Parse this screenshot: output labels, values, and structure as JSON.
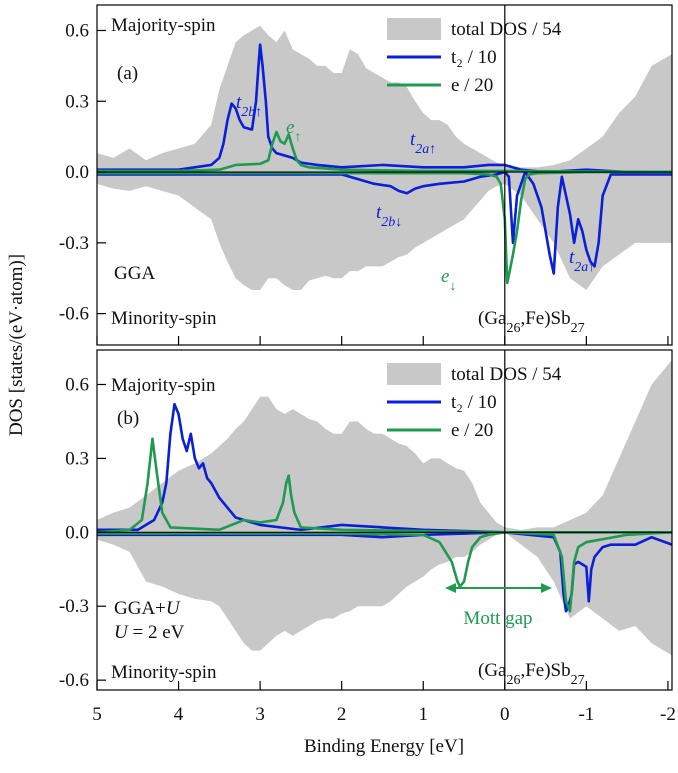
{
  "figure": {
    "ylabel": "DOS [states/(eV·atom)]",
    "xlabel": "Binding Energy [eV]"
  },
  "chart_data": [
    {
      "type": "dos",
      "panel_label": "(a)",
      "spin_labels": [
        "Majority-spin",
        "Minority-spin"
      ],
      "method": [
        [
          {
            "text": "GGA"
          }
        ]
      ],
      "formula": [
        {
          "text": "(Ga"
        },
        {
          "text": "26",
          "style": "sub"
        },
        {
          "text": ",Fe)Sb"
        },
        {
          "text": "27",
          "style": "sub"
        }
      ],
      "peak_labels": [
        {
          "segments": [
            {
              "text": "t"
            },
            {
              "text": "2b↑",
              "style": "sub"
            }
          ],
          "color": "#0a1fd6"
        },
        {
          "segments": [
            {
              "text": "e"
            },
            {
              "text": "↑",
              "style": "sub"
            }
          ],
          "color": "#1f9a50"
        },
        {
          "segments": [
            {
              "text": "t"
            },
            {
              "text": "2a↑",
              "style": "sub"
            }
          ],
          "color": "#0a1fd6"
        },
        {
          "segments": [
            {
              "text": "t"
            },
            {
              "text": "2b↓",
              "style": "sub"
            }
          ],
          "color": "#0a1fd6"
        },
        {
          "segments": [
            {
              "text": "e"
            },
            {
              "text": "↓",
              "style": "sub"
            }
          ],
          "color": "#1f9a50"
        },
        {
          "segments": [
            {
              "text": "t"
            },
            {
              "text": "2a↑",
              "style": "sub"
            }
          ],
          "color": "#0a1fd6"
        }
      ],
      "xlim": [
        5,
        -2.05
      ],
      "xticks": [
        5,
        4,
        3,
        2,
        1,
        0,
        -1,
        -2
      ],
      "ylim": [
        -0.733,
        0.708
      ],
      "yticks": [
        -0.6,
        -0.3,
        {
          "value": 0,
          "label": "0.0"
        },
        0.3,
        0.6
      ],
      "series": [
        {
          "name": "total DOS / 54",
          "color": "#c8c8c8",
          "style": "area",
          "x_up": [
            5,
            4.8,
            4.6,
            4.4,
            4.2,
            4.0,
            3.8,
            3.6,
            3.5,
            3.4,
            3.3,
            3.2,
            3.1,
            3.0,
            2.9,
            2.8,
            2.7,
            2.6,
            2.5,
            2.4,
            2.3,
            2.2,
            2.1,
            2.0,
            1.9,
            1.8,
            1.7,
            1.6,
            1.5,
            1.4,
            1.3,
            1.2,
            1.1,
            1.0,
            0.9,
            0.8,
            0.7,
            0.6,
            0.5,
            0.4,
            0.3,
            0.2,
            0.1,
            0,
            -0.2,
            -0.4,
            -0.6,
            -0.8,
            -1.0,
            -1.2,
            -1.4,
            -1.6,
            -1.8,
            -2.05
          ],
          "up": [
            0.08,
            0.06,
            0.1,
            0.05,
            0.08,
            0.1,
            0.12,
            0.2,
            0.35,
            0.45,
            0.55,
            0.58,
            0.6,
            0.62,
            0.58,
            0.55,
            0.6,
            0.52,
            0.5,
            0.48,
            0.45,
            0.45,
            0.42,
            0.42,
            0.52,
            0.5,
            0.44,
            0.42,
            0.4,
            0.38,
            0.38,
            0.36,
            0.3,
            0.25,
            0.22,
            0.22,
            0.2,
            0.15,
            0.12,
            0.1,
            0.08,
            0.06,
            0.04,
            0.03,
            0.02,
            0.02,
            0.03,
            0.05,
            0.1,
            0.15,
            0.25,
            0.32,
            0.45,
            0.5
          ],
          "x_down": [
            5,
            4.8,
            4.6,
            4.4,
            4.2,
            4.0,
            3.8,
            3.6,
            3.5,
            3.4,
            3.3,
            3.2,
            3.1,
            3.0,
            2.9,
            2.8,
            2.7,
            2.6,
            2.5,
            2.4,
            2.3,
            2.2,
            2.1,
            2.0,
            1.9,
            1.8,
            1.7,
            1.6,
            1.5,
            1.4,
            1.3,
            1.2,
            1.1,
            1.0,
            0.9,
            0.8,
            0.7,
            0.6,
            0.5,
            0.4,
            0.3,
            0.2,
            0.1,
            0,
            -0.2,
            -0.4,
            -0.6,
            -0.8,
            -1.0,
            -1.2,
            -1.4,
            -1.6,
            -1.8,
            -2.05
          ],
          "down": [
            -0.05,
            -0.07,
            -0.08,
            -0.06,
            -0.08,
            -0.1,
            -0.15,
            -0.2,
            -0.3,
            -0.38,
            -0.45,
            -0.48,
            -0.5,
            -0.5,
            -0.45,
            -0.45,
            -0.48,
            -0.5,
            -0.5,
            -0.46,
            -0.45,
            -0.44,
            -0.45,
            -0.45,
            -0.42,
            -0.42,
            -0.4,
            -0.4,
            -0.4,
            -0.38,
            -0.36,
            -0.35,
            -0.32,
            -0.3,
            -0.28,
            -0.26,
            -0.24,
            -0.22,
            -0.2,
            -0.16,
            -0.12,
            -0.08,
            -0.06,
            -0.05,
            -0.1,
            -0.2,
            -0.3,
            -0.45,
            -0.5,
            -0.4,
            -0.35,
            -0.3,
            -0.3,
            -0.3
          ]
        },
        {
          "name": "t₂ / 10",
          "color": "#0a1fd6",
          "style": "line",
          "x_up": [
            5,
            4.5,
            4,
            3.8,
            3.6,
            3.5,
            3.45,
            3.4,
            3.35,
            3.3,
            3.25,
            3.2,
            3.1,
            3.05,
            3.02,
            3.0,
            2.97,
            2.93,
            2.9,
            2.85,
            2.8,
            2.7,
            2.6,
            2.5,
            2.3,
            2.0,
            1.5,
            1.0,
            0.5,
            0.2,
            0,
            -0.1,
            -0.2,
            -0.5,
            -1,
            -1.5,
            -2.05
          ],
          "up": [
            0.01,
            0.01,
            0.01,
            0.02,
            0.03,
            0.06,
            0.12,
            0.22,
            0.29,
            0.27,
            0.22,
            0.19,
            0.18,
            0.3,
            0.45,
            0.54,
            0.45,
            0.3,
            0.15,
            0.1,
            0.08,
            0.07,
            0.06,
            0.04,
            0.03,
            0.02,
            0.03,
            0.02,
            0.02,
            0.03,
            0.03,
            0.02,
            0.01,
            0,
            0.01,
            0,
            0
          ],
          "x_down": [
            5,
            4,
            3,
            2,
            1.8,
            1.6,
            1.4,
            1.3,
            1.2,
            1.1,
            1.0,
            0.8,
            0.5,
            0.3,
            0.1,
            0,
            -0.05,
            -0.1,
            -0.15,
            -0.25,
            -0.35,
            -0.45,
            -0.5,
            -0.55,
            -0.6,
            -0.65,
            -0.7,
            -0.8,
            -0.85,
            -0.9,
            -0.95,
            -1.0,
            -1.05,
            -1.1,
            -1.15,
            -1.2,
            -1.3,
            -1.5,
            -2.05
          ],
          "down": [
            -0.01,
            -0.01,
            -0.01,
            -0.01,
            -0.03,
            -0.05,
            -0.06,
            -0.08,
            -0.09,
            -0.07,
            -0.06,
            -0.05,
            -0.04,
            -0.02,
            -0.01,
            0,
            -0.02,
            -0.3,
            -0.1,
            0,
            -0.05,
            -0.15,
            -0.25,
            -0.35,
            -0.43,
            -0.15,
            -0.02,
            -0.18,
            -0.3,
            -0.2,
            -0.25,
            -0.33,
            -0.38,
            -0.4,
            -0.3,
            -0.1,
            -0.01,
            -0.01,
            -0.01
          ]
        },
        {
          "name": "e / 20",
          "color": "#1f9a50",
          "style": "line",
          "x_up": [
            5,
            4,
            3.5,
            3.3,
            3.0,
            2.9,
            2.85,
            2.8,
            2.75,
            2.7,
            2.65,
            2.6,
            2.55,
            2.5,
            2.4,
            2.0,
            1.0,
            0,
            -2.05
          ],
          "up": [
            0.005,
            0.005,
            0.01,
            0.03,
            0.035,
            0.05,
            0.12,
            0.17,
            0.13,
            0.12,
            0.16,
            0.1,
            0.05,
            0.03,
            0.02,
            0.01,
            0.005,
            0.005,
            0
          ],
          "x_down": [
            5,
            2,
            0.5,
            0.2,
            0.1,
            0.05,
            0,
            -0.03,
            -0.06,
            -0.1,
            -0.15,
            -0.2,
            -0.25,
            -0.3,
            -0.4,
            -1,
            -2.05
          ],
          "down": [
            -0.005,
            -0.005,
            -0.005,
            -0.01,
            -0.02,
            -0.05,
            -0.2,
            -0.47,
            -0.42,
            -0.35,
            -0.25,
            -0.12,
            -0.03,
            -0.01,
            -0.005,
            0,
            0
          ]
        }
      ]
    },
    {
      "type": "dos",
      "panel_label": "(b)",
      "spin_labels": [
        "Majority-spin",
        "Minority-spin"
      ],
      "method": [
        [
          {
            "text": "GGA+"
          },
          {
            "text": "U",
            "style": "italic"
          }
        ],
        [
          {
            "text": "U",
            "style": "italic"
          },
          {
            "text": " = 2 eV"
          }
        ]
      ],
      "formula": [
        {
          "text": "(Ga"
        },
        {
          "text": "26",
          "style": "sub"
        },
        {
          "text": ",Fe)Sb"
        },
        {
          "text": "27",
          "style": "sub"
        }
      ],
      "gap_label": "Mott gap",
      "xlim": [
        5,
        -2.05
      ],
      "xticks": [
        5,
        4,
        3,
        2,
        1,
        0,
        -1,
        -2
      ],
      "ylim": [
        -0.64,
        0.74
      ],
      "yticks": [
        -0.6,
        -0.3,
        {
          "value": 0,
          "label": "0.0"
        },
        0.3,
        0.6
      ],
      "series": [
        {
          "name": "total DOS / 54",
          "color": "#c8c8c8",
          "style": "area",
          "x_up": [
            5,
            4.8,
            4.6,
            4.4,
            4.2,
            4.0,
            3.8,
            3.6,
            3.5,
            3.4,
            3.3,
            3.2,
            3.1,
            3.0,
            2.9,
            2.8,
            2.7,
            2.6,
            2.5,
            2.4,
            2.3,
            2.2,
            2.1,
            2.0,
            1.9,
            1.8,
            1.7,
            1.6,
            1.5,
            1.4,
            1.3,
            1.2,
            1.1,
            1.0,
            0.9,
            0.8,
            0.7,
            0.6,
            0.5,
            0.4,
            0.3,
            0.2,
            0.1,
            0,
            -0.2,
            -0.4,
            -0.6,
            -0.8,
            -1.0,
            -1.2,
            -1.4,
            -1.6,
            -1.8,
            -2.05
          ],
          "up": [
            0.05,
            0.08,
            0.1,
            0.15,
            0.2,
            0.25,
            0.28,
            0.32,
            0.35,
            0.38,
            0.42,
            0.45,
            0.5,
            0.55,
            0.55,
            0.5,
            0.48,
            0.5,
            0.48,
            0.46,
            0.45,
            0.42,
            0.4,
            0.4,
            0.45,
            0.45,
            0.42,
            0.4,
            0.4,
            0.38,
            0.36,
            0.35,
            0.32,
            0.28,
            0.3,
            0.3,
            0.28,
            0.26,
            0.25,
            0.2,
            0.12,
            0.08,
            0.04,
            0.02,
            0.01,
            0.02,
            0.02,
            0.05,
            0.08,
            0.15,
            0.3,
            0.45,
            0.6,
            0.7
          ],
          "x_down": [
            5,
            4.8,
            4.6,
            4.4,
            4.2,
            4.0,
            3.8,
            3.6,
            3.5,
            3.4,
            3.3,
            3.2,
            3.1,
            3.0,
            2.9,
            2.8,
            2.7,
            2.6,
            2.5,
            2.4,
            2.3,
            2.2,
            2.1,
            2.0,
            1.9,
            1.8,
            1.7,
            1.6,
            1.5,
            1.4,
            1.3,
            1.2,
            1.1,
            1.0,
            0.9,
            0.8,
            0.7,
            0.6,
            0.5,
            0.4,
            0.3,
            0.2,
            0.1,
            0,
            -0.2,
            -0.4,
            -0.6,
            -0.8,
            -1.0,
            -1.2,
            -1.4,
            -1.6,
            -1.8,
            -2.05
          ],
          "down": [
            -0.03,
            -0.05,
            -0.08,
            -0.2,
            -0.22,
            -0.25,
            -0.27,
            -0.28,
            -0.3,
            -0.35,
            -0.4,
            -0.45,
            -0.48,
            -0.48,
            -0.45,
            -0.42,
            -0.4,
            -0.42,
            -0.4,
            -0.38,
            -0.36,
            -0.35,
            -0.35,
            -0.33,
            -0.32,
            -0.3,
            -0.3,
            -0.3,
            -0.3,
            -0.28,
            -0.25,
            -0.22,
            -0.2,
            -0.18,
            -0.15,
            -0.13,
            -0.12,
            -0.1,
            -0.1,
            -0.08,
            -0.05,
            -0.03,
            -0.01,
            0,
            -0.05,
            -0.1,
            -0.2,
            -0.35,
            -0.3,
            -0.35,
            -0.4,
            -0.38,
            -0.45,
            -0.5
          ]
        },
        {
          "name": "t₂ / 10",
          "color": "#0a1fd6",
          "style": "line",
          "x_up": [
            5,
            4.5,
            4.3,
            4.2,
            4.15,
            4.1,
            4.05,
            4.0,
            3.95,
            3.9,
            3.85,
            3.8,
            3.75,
            3.7,
            3.65,
            3.6,
            3.5,
            3.3,
            3.0,
            2.5,
            2.0,
            1.5,
            1.0,
            0.5,
            0,
            -1,
            -2.05
          ],
          "up": [
            0.01,
            0.01,
            0.05,
            0.12,
            0.2,
            0.4,
            0.52,
            0.48,
            0.38,
            0.33,
            0.4,
            0.3,
            0.26,
            0.28,
            0.22,
            0.2,
            0.14,
            0.06,
            0.03,
            0.01,
            0.03,
            0.02,
            0.01,
            0.005,
            0,
            0,
            0
          ],
          "x_down": [
            5,
            3,
            2,
            1.5,
            1,
            0,
            -0.3,
            -0.6,
            -0.68,
            -0.72,
            -0.75,
            -0.78,
            -0.82,
            -0.85,
            -0.9,
            -1.0,
            -1.03,
            -1.06,
            -1.1,
            -1.2,
            -1.3,
            -1.6,
            -1.8,
            -2.05
          ],
          "down": [
            -0.01,
            -0.01,
            -0.01,
            -0.02,
            -0.01,
            0,
            -0.01,
            -0.02,
            -0.08,
            -0.25,
            -0.32,
            -0.3,
            -0.25,
            -0.13,
            -0.12,
            -0.14,
            -0.28,
            -0.15,
            -0.1,
            -0.06,
            -0.05,
            -0.05,
            -0.02,
            -0.05
          ]
        },
        {
          "name": "e / 20",
          "color": "#1f9a50",
          "style": "line",
          "x_up": [
            5,
            4.6,
            4.45,
            4.38,
            4.32,
            4.27,
            4.2,
            4.1,
            3.5,
            3.2,
            3.0,
            2.8,
            2.72,
            2.68,
            2.65,
            2.62,
            2.58,
            2.5,
            2.0,
            1.0,
            0,
            -2.05
          ],
          "up": [
            0,
            0.01,
            0.05,
            0.2,
            0.38,
            0.25,
            0.08,
            0.02,
            0.01,
            0.05,
            0.04,
            0.05,
            0.12,
            0.2,
            0.23,
            0.15,
            0.08,
            0.02,
            0.01,
            0.005,
            0,
            0
          ],
          "x_down": [
            5,
            2,
            1,
            0.8,
            0.65,
            0.58,
            0.55,
            0.5,
            0.45,
            0.4,
            0.3,
            0.2,
            0,
            -0.6,
            -0.7,
            -0.75,
            -0.8,
            -0.85,
            -0.9,
            -1.0,
            -1.5,
            -2.05
          ],
          "down": [
            -0.005,
            -0.005,
            -0.01,
            -0.04,
            -0.12,
            -0.2,
            -0.22,
            -0.2,
            -0.12,
            -0.06,
            -0.02,
            -0.01,
            0,
            -0.01,
            -0.1,
            -0.28,
            -0.32,
            -0.12,
            -0.06,
            -0.04,
            -0.01,
            0
          ]
        }
      ]
    }
  ]
}
